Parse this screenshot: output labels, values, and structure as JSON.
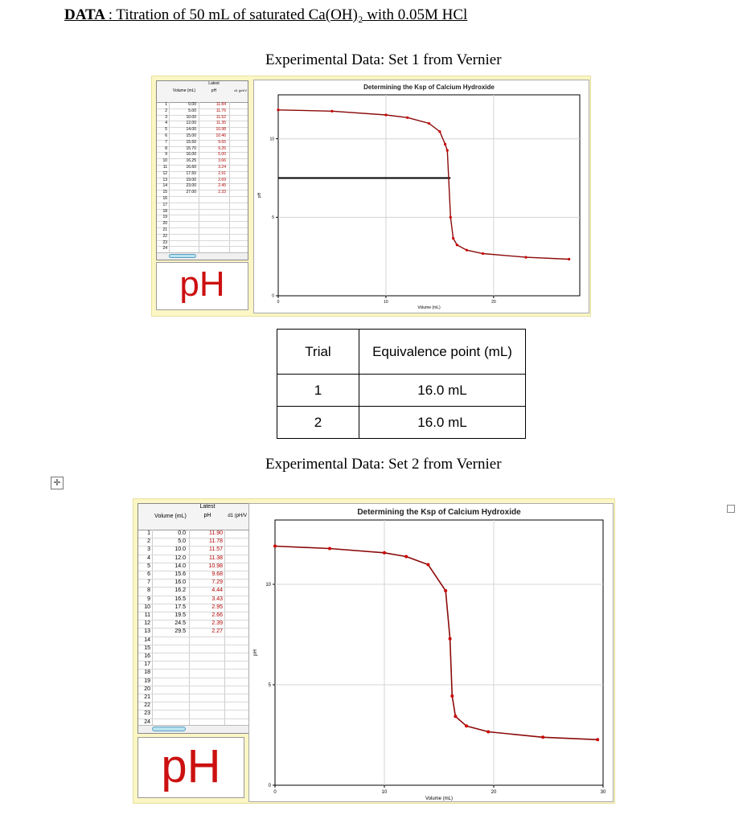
{
  "document": {
    "title_lead": "DATA ",
    "title_rest": ": Titration of 50 mL of saturated Ca(OH)₂ with 0.05M HCl",
    "set1_heading": "Experimental Data:  Set 1 from Vernier",
    "set2_heading": "Experimental Data:  Set 2 from Vernier",
    "move_handle_icon": "move-arrows-icon",
    "right_edge_handle_icon": "resize-handle-icon"
  },
  "summary_table": {
    "headers": [
      "Trial",
      "Equivalence point (mL)"
    ],
    "rows": [
      {
        "trial": "1",
        "equivalence_point": "16.0 mL"
      },
      {
        "trial": "2",
        "equivalence_point": "16.0 mL"
      }
    ]
  },
  "colors": {
    "panel_background": "#fbf6c4",
    "curve": "#8b0a0a",
    "data_point": "#cc0000",
    "ph_meter_text": "#cc1010",
    "guide_line": "#000000"
  },
  "set1": {
    "table": {
      "group_header": "Latest",
      "columns": [
        "Volume (mL)",
        "pH",
        "d1 (pH/V"
      ],
      "row_numbers": [
        "1",
        "2",
        "3",
        "4",
        "5",
        "6",
        "7",
        "8",
        "9",
        "10",
        "11",
        "12",
        "13",
        "14",
        "15",
        "16",
        "17",
        "18",
        "19",
        "20",
        "21",
        "22",
        "23",
        "24"
      ],
      "volume": [
        "0.00",
        "5.00",
        "10.00",
        "12.00",
        "14.00",
        "15.00",
        "15.50",
        "15.70",
        "16.00",
        "16.25",
        "16.60",
        "17.50",
        "19.00",
        "23.00",
        "27.00"
      ],
      "ph": [
        "11.84",
        "11.76",
        "11.52",
        "11.35",
        "10.98",
        "10.46",
        "9.65",
        "9.26",
        "5.00",
        "3.66",
        "3.24",
        "2.91",
        "2.69",
        "2.45",
        "2.33"
      ]
    },
    "ph_meter_label": "pH",
    "chart_data": {
      "type": "line",
      "title": "Determining the Ksp of Calcium Hydroxide",
      "xlabel": "Volume (mL)",
      "ylabel": "pH",
      "xlim": [
        0,
        28
      ],
      "ylim": [
        0,
        12.8
      ],
      "x_ticks": [
        0,
        10,
        20
      ],
      "y_ticks": [
        0,
        5,
        10
      ],
      "grid": true,
      "x": [
        0,
        5,
        10,
        12,
        14,
        15,
        15.5,
        15.7,
        16,
        16.25,
        16.6,
        17.5,
        19,
        23,
        27
      ],
      "y": [
        11.84,
        11.76,
        11.52,
        11.35,
        10.98,
        10.46,
        9.65,
        9.26,
        5.0,
        3.66,
        3.24,
        2.91,
        2.69,
        2.45,
        2.33
      ],
      "guide_line": {
        "y": 7.5,
        "x_start": 0,
        "x_end": 16
      }
    }
  },
  "set2": {
    "table": {
      "group_header": "Latest",
      "columns": [
        "Volume (mL)",
        "pH",
        "d1 (pH/V"
      ],
      "row_numbers": [
        "1",
        "2",
        "3",
        "4",
        "5",
        "6",
        "7",
        "8",
        "9",
        "10",
        "11",
        "12",
        "13",
        "14",
        "15",
        "16",
        "17",
        "18",
        "19",
        "20",
        "21",
        "22",
        "23",
        "24"
      ],
      "volume": [
        "0.0",
        "5.0",
        "10.0",
        "12.0",
        "14.0",
        "15.6",
        "16.0",
        "16.2",
        "16.5",
        "17.5",
        "19.5",
        "24.5",
        "29.5"
      ],
      "ph": [
        "11.90",
        "11.78",
        "11.57",
        "11.38",
        "10.98",
        "9.68",
        "7.29",
        "4.44",
        "3.43",
        "2.95",
        "2.66",
        "2.39",
        "2.27"
      ]
    },
    "ph_meter_label": "pH",
    "chart_data": {
      "type": "line",
      "title": "Determining the Ksp of Calcium Hydroxide",
      "xlabel": "Volume (mL)",
      "ylabel": "pH",
      "xlim": [
        0,
        30
      ],
      "ylim": [
        0,
        13.2
      ],
      "x_ticks": [
        0,
        10,
        20,
        30
      ],
      "y_ticks": [
        0,
        5,
        10
      ],
      "grid": true,
      "x": [
        0,
        5,
        10,
        12,
        14,
        15.6,
        16,
        16.2,
        16.5,
        17.5,
        19.5,
        24.5,
        29.5
      ],
      "y": [
        11.9,
        11.78,
        11.57,
        11.38,
        10.98,
        9.68,
        7.29,
        4.44,
        3.43,
        2.95,
        2.66,
        2.39,
        2.27
      ]
    }
  }
}
